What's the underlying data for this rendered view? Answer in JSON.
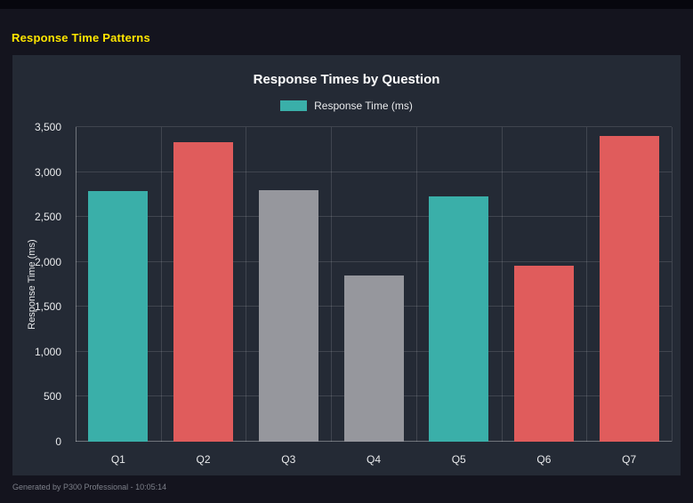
{
  "page": {
    "title": "Response Time Patterns",
    "footer": "Generated by P300 Professional - 10:05:14",
    "background": "#14141e",
    "panel_background": "#242a35",
    "title_color": "#ffe600"
  },
  "chart_data": {
    "type": "bar",
    "title": "Response Times by Question",
    "legend": [
      {
        "label": "Response Time (ms)",
        "color": "#3aafa9"
      }
    ],
    "legend_position": "top",
    "categories": [
      "Q1",
      "Q2",
      "Q3",
      "Q4",
      "Q5",
      "Q6",
      "Q7"
    ],
    "values": [
      2790,
      3330,
      2800,
      1845,
      2725,
      1955,
      3405
    ],
    "bar_colors": [
      "#3aafa9",
      "#e05c5c",
      "#96979d",
      "#96979d",
      "#3aafa9",
      "#e05c5c",
      "#e05c5c"
    ],
    "xlabel": "",
    "ylabel": "Response Time (ms)",
    "ylim": [
      0,
      3500
    ],
    "ytick_step": 500,
    "yticks": [
      "0",
      "500",
      "1,000",
      "1,500",
      "2,000",
      "2,500",
      "3,000",
      "3,500"
    ],
    "grid": true
  }
}
